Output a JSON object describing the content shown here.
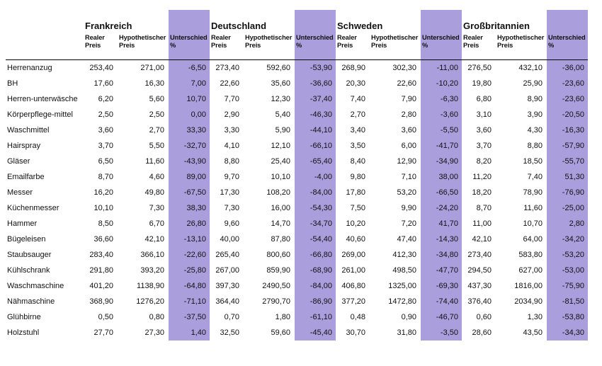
{
  "colors": {
    "highlight_purple": "#ab9edc",
    "rule_black": "#000000",
    "text": "#111111",
    "background": "#ffffff"
  },
  "table": {
    "countries": [
      "Frankreich",
      "Deutschland",
      "Schweden",
      "Großbritannien"
    ],
    "subcolumns": [
      "Realer Preis",
      "Hypothetischer Preis",
      "Unterschied %"
    ],
    "rows": [
      {
        "label": "Herrenanzug",
        "values": [
          [
            "253,40",
            "271,00",
            "-6,50"
          ],
          [
            "273,40",
            "592,60",
            "-53,90"
          ],
          [
            "268,90",
            "302,30",
            "-11,00"
          ],
          [
            "276,50",
            "432,10",
            "-36,00"
          ]
        ]
      },
      {
        "label": "BH",
        "values": [
          [
            "17,60",
            "16,30",
            "7,00"
          ],
          [
            "22,60",
            "35,60",
            "-36,60"
          ],
          [
            "20,30",
            "22,60",
            "-10,20"
          ],
          [
            "19,80",
            "25,90",
            "-23,60"
          ]
        ]
      },
      {
        "label": "Herren-unterwäsche",
        "values": [
          [
            "6,20",
            "5,60",
            "10,70"
          ],
          [
            "7,70",
            "12,30",
            "-37,40"
          ],
          [
            "7,40",
            "7,90",
            "-6,30"
          ],
          [
            "6,80",
            "8,90",
            "-23,60"
          ]
        ]
      },
      {
        "label": "Körperpflege-mittel",
        "values": [
          [
            "2,50",
            "2,50",
            "0,00"
          ],
          [
            "2,90",
            "5,40",
            "-46,30"
          ],
          [
            "2,70",
            "2,80",
            "-3,60"
          ],
          [
            "3,10",
            "3,90",
            "-20,50"
          ]
        ]
      },
      {
        "label": "Waschmittel",
        "values": [
          [
            "3,60",
            "2,70",
            "33,30"
          ],
          [
            "3,30",
            "5,90",
            "-44,10"
          ],
          [
            "3,40",
            "3,60",
            "-5,50"
          ],
          [
            "3,60",
            "4,30",
            "-16,30"
          ]
        ]
      },
      {
        "label": "Hairspray",
        "values": [
          [
            "3,70",
            "5,50",
            "-32,70"
          ],
          [
            "4,10",
            "12,10",
            "-66,10"
          ],
          [
            "3,50",
            "6,00",
            "-41,70"
          ],
          [
            "3,70",
            "8,80",
            "-57,90"
          ]
        ]
      },
      {
        "label": "Gläser",
        "values": [
          [
            "6,50",
            "11,60",
            "-43,90"
          ],
          [
            "8,80",
            "25,40",
            "-65,40"
          ],
          [
            "8,40",
            "12,90",
            "-34,90"
          ],
          [
            "8,20",
            "18,50",
            "-55,70"
          ]
        ]
      },
      {
        "label": "Emailfarbe",
        "values": [
          [
            "8,70",
            "4,60",
            "89,00"
          ],
          [
            "9,70",
            "10,10",
            "-4,00"
          ],
          [
            "9,80",
            "7,10",
            "38,00"
          ],
          [
            "11,20",
            "7,40",
            "51,30"
          ]
        ]
      },
      {
        "label": "Messer",
        "values": [
          [
            "16,20",
            "49,80",
            "-67,50"
          ],
          [
            "17,30",
            "108,20",
            "-84,00"
          ],
          [
            "17,80",
            "53,20",
            "-66,50"
          ],
          [
            "18,20",
            "78,90",
            "-76,90"
          ]
        ]
      },
      {
        "label": "Küchenmesser",
        "values": [
          [
            "10,10",
            "7,30",
            "38,30"
          ],
          [
            "7,30",
            "16,00",
            "-54,30"
          ],
          [
            "7,50",
            "9,90",
            "-24,20"
          ],
          [
            "8,70",
            "11,60",
            "-25,00"
          ]
        ]
      },
      {
        "label": "Hammer",
        "values": [
          [
            "8,50",
            "6,70",
            "26,80"
          ],
          [
            "9,60",
            "14,70",
            "-34,70"
          ],
          [
            "10,20",
            "7,20",
            "41,70"
          ],
          [
            "11,00",
            "10,70",
            "2,80"
          ]
        ]
      },
      {
        "label": "Bügeleisen",
        "values": [
          [
            "36,60",
            "42,10",
            "-13,10"
          ],
          [
            "40,00",
            "87,80",
            "-54,40"
          ],
          [
            "40,60",
            "47,40",
            "-14,30"
          ],
          [
            "42,10",
            "64,00",
            "-34,20"
          ]
        ]
      },
      {
        "label": "Staubsauger",
        "values": [
          [
            "283,40",
            "366,10",
            "-22,60"
          ],
          [
            "265,40",
            "800,60",
            "-66,80"
          ],
          [
            "269,00",
            "412,30",
            "-34,80"
          ],
          [
            "273,40",
            "583,80",
            "-53,20"
          ]
        ]
      },
      {
        "label": "Kühlschrank",
        "values": [
          [
            "291,80",
            "393,20",
            "-25,80"
          ],
          [
            "267,00",
            "859,90",
            "-68,90"
          ],
          [
            "261,00",
            "498,50",
            "-47,70"
          ],
          [
            "294,50",
            "627,00",
            "-53,00"
          ]
        ]
      },
      {
        "label": "Waschmaschine",
        "values": [
          [
            "401,20",
            "1138,90",
            "-64,80"
          ],
          [
            "397,30",
            "2490,50",
            "-84,00"
          ],
          [
            "406,80",
            "1325,00",
            "-69,30"
          ],
          [
            "437,30",
            "1816,00",
            "-75,90"
          ]
        ]
      },
      {
        "label": "Nähmaschine",
        "values": [
          [
            "368,90",
            "1276,20",
            "-71,10"
          ],
          [
            "364,40",
            "2790,70",
            "-86,90"
          ],
          [
            "377,20",
            "1472,80",
            "-74,40"
          ],
          [
            "376,40",
            "2034,90",
            "-81,50"
          ]
        ]
      },
      {
        "label": "Glühbirne",
        "values": [
          [
            "0,50",
            "0,80",
            "-37,50"
          ],
          [
            "0,70",
            "1,80",
            "-61,10"
          ],
          [
            "0,48",
            "0,90",
            "-46,70"
          ],
          [
            "0,60",
            "1,30",
            "-53,80"
          ]
        ]
      },
      {
        "label": "Holzstuhl",
        "values": [
          [
            "27,70",
            "27,30",
            "1,40"
          ],
          [
            "32,50",
            "59,60",
            "-45,40"
          ],
          [
            "30,70",
            "31,80",
            "-3,50"
          ],
          [
            "28,60",
            "43,50",
            "-34,30"
          ]
        ]
      }
    ]
  }
}
